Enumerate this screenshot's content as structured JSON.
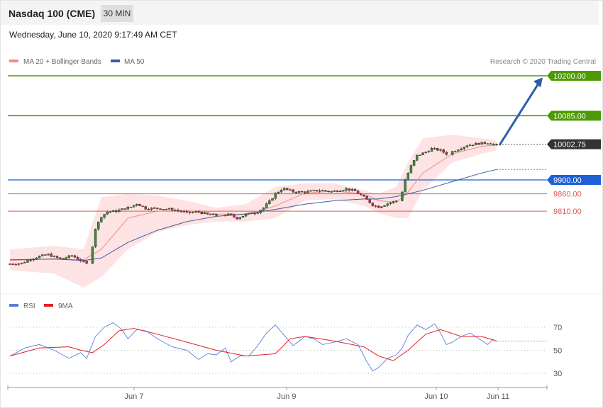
{
  "header": {
    "title": "Nasdaq 100 (CME)",
    "timeframe": "30 MIN"
  },
  "subheader": {
    "datetime": "Wednesday, June 10, 2020 9:17:49 AM CET"
  },
  "legend": {
    "ma20": "MA 20 + Bollinger Bands",
    "ma50": "MA 50",
    "rsi": "RSI",
    "ma9": "9MA"
  },
  "credit": "Research © 2020 Trading Central",
  "colors": {
    "resistance": "#4e9a06",
    "pivot": "#1f5fd6",
    "support": "#e05a5a",
    "current": "#333333",
    "arrow": "#2b5ea8",
    "ma20": "#f28b8b",
    "ma50": "#3a5ba0",
    "bollinger": "#fde0e0",
    "rsi": "#5b7fd6",
    "ma9": "#e02020",
    "candle_up": "#3a8a3a",
    "candle_down": "#c03030"
  },
  "chart_data": [
    {
      "type": "candlestick",
      "title": "Nasdaq 100 (CME)",
      "interval": "30 MIN",
      "x_ticks": [
        "Jun 7",
        "Jun 9",
        "Jun 10",
        "Jun 11"
      ],
      "ylim": [
        9600,
        10250
      ],
      "levels": [
        {
          "label": "10200.00",
          "value": 10200,
          "kind": "resistance"
        },
        {
          "label": "10085.00",
          "value": 10085,
          "kind": "resistance"
        },
        {
          "label": "10002.75",
          "value": 10002.75,
          "kind": "current"
        },
        {
          "label": "9900.00",
          "value": 9900,
          "kind": "pivot"
        },
        {
          "label": "9860.00",
          "value": 9860,
          "kind": "support"
        },
        {
          "label": "9810.00",
          "value": 9810,
          "kind": "support"
        }
      ],
      "target_arrow": {
        "from": 10000,
        "to": 10195
      },
      "price_path": [
        [
          0,
          9658
        ],
        [
          8,
          9660
        ],
        [
          14,
          9672
        ],
        [
          20,
          9680
        ],
        [
          26,
          9685
        ],
        [
          30,
          9678
        ],
        [
          35,
          9672
        ],
        [
          42,
          9682
        ],
        [
          48,
          9668
        ],
        [
          52,
          9658
        ],
        [
          55,
          9685
        ],
        [
          58,
          9760
        ],
        [
          62,
          9795
        ],
        [
          66,
          9808
        ],
        [
          72,
          9810
        ],
        [
          78,
          9818
        ],
        [
          82,
          9822
        ],
        [
          86,
          9832
        ],
        [
          92,
          9818
        ],
        [
          100,
          9818
        ],
        [
          110,
          9815
        ],
        [
          120,
          9805
        ],
        [
          128,
          9808
        ],
        [
          134,
          9800
        ],
        [
          140,
          9798
        ],
        [
          148,
          9800
        ],
        [
          154,
          9790
        ],
        [
          160,
          9800
        ],
        [
          168,
          9808
        ],
        [
          172,
          9820
        ],
        [
          176,
          9838
        ],
        [
          180,
          9860
        ],
        [
          185,
          9876
        ],
        [
          192,
          9866
        ],
        [
          200,
          9865
        ],
        [
          210,
          9870
        ],
        [
          218,
          9866
        ],
        [
          228,
          9874
        ],
        [
          234,
          9868
        ],
        [
          240,
          9850
        ],
        [
          246,
          9828
        ],
        [
          250,
          9822
        ],
        [
          256,
          9832
        ],
        [
          262,
          9840
        ],
        [
          265,
          9850
        ],
        [
          268,
          9900
        ],
        [
          272,
          9940
        ],
        [
          276,
          9970
        ],
        [
          282,
          9980
        ],
        [
          286,
          9990
        ],
        [
          292,
          9985
        ],
        [
          296,
          9975
        ],
        [
          302,
          9985
        ],
        [
          310,
          10000
        ],
        [
          318,
          10005
        ],
        [
          324,
          10007
        ],
        [
          328,
          10003
        ],
        [
          330,
          10000
        ]
      ],
      "bollinger": [
        [
          0,
          9640,
          9700
        ],
        [
          30,
          9630,
          9710
        ],
        [
          50,
          9590,
          9700
        ],
        [
          62,
          9620,
          9850
        ],
        [
          80,
          9700,
          9860
        ],
        [
          100,
          9750,
          9855
        ],
        [
          120,
          9770,
          9840
        ],
        [
          140,
          9780,
          9820
        ],
        [
          160,
          9780,
          9830
        ],
        [
          180,
          9790,
          9880
        ],
        [
          200,
          9840,
          9890
        ],
        [
          220,
          9845,
          9890
        ],
        [
          240,
          9825,
          9870
        ],
        [
          250,
          9805,
          9860
        ],
        [
          262,
          9790,
          9880
        ],
        [
          270,
          9790,
          9950
        ],
        [
          280,
          9870,
          10020
        ],
        [
          300,
          9950,
          10030
        ],
        [
          320,
          9975,
          10020
        ],
        [
          330,
          9985,
          10015
        ]
      ],
      "ma20": [
        [
          0,
          9668
        ],
        [
          30,
          9673
        ],
        [
          50,
          9670
        ],
        [
          62,
          9700
        ],
        [
          80,
          9790
        ],
        [
          100,
          9810
        ],
        [
          120,
          9812
        ],
        [
          140,
          9802
        ],
        [
          160,
          9800
        ],
        [
          180,
          9825
        ],
        [
          200,
          9862
        ],
        [
          220,
          9868
        ],
        [
          240,
          9860
        ],
        [
          250,
          9840
        ],
        [
          262,
          9835
        ],
        [
          270,
          9865
        ],
        [
          280,
          9920
        ],
        [
          300,
          9975
        ],
        [
          320,
          9997
        ],
        [
          330,
          10000
        ]
      ],
      "ma50": [
        [
          0,
          9670
        ],
        [
          30,
          9672
        ],
        [
          50,
          9668
        ],
        [
          62,
          9675
        ],
        [
          80,
          9720
        ],
        [
          100,
          9755
        ],
        [
          120,
          9780
        ],
        [
          140,
          9795
        ],
        [
          160,
          9802
        ],
        [
          180,
          9815
        ],
        [
          200,
          9830
        ],
        [
          220,
          9840
        ],
        [
          240,
          9845
        ],
        [
          250,
          9845
        ],
        [
          262,
          9852
        ],
        [
          280,
          9870
        ],
        [
          300,
          9895
        ],
        [
          320,
          9920
        ],
        [
          330,
          9930
        ]
      ]
    },
    {
      "type": "line",
      "title": "RSI",
      "ylim": [
        20,
        80
      ],
      "y_ticks": [
        70,
        50,
        30
      ],
      "series": [
        {
          "name": "RSI",
          "values": [
            [
              0,
              45
            ],
            [
              10,
              52
            ],
            [
              20,
              55
            ],
            [
              30,
              50
            ],
            [
              40,
              43
            ],
            [
              48,
              48
            ],
            [
              52,
              43
            ],
            [
              58,
              62
            ],
            [
              64,
              70
            ],
            [
              70,
              74
            ],
            [
              76,
              68
            ],
            [
              80,
              60
            ],
            [
              86,
              68
            ],
            [
              92,
              67
            ],
            [
              100,
              60
            ],
            [
              110,
              53
            ],
            [
              120,
              50
            ],
            [
              128,
              42
            ],
            [
              134,
              47
            ],
            [
              140,
              46
            ],
            [
              146,
              52
            ],
            [
              150,
              40
            ],
            [
              156,
              45
            ],
            [
              162,
              45
            ],
            [
              168,
              54
            ],
            [
              174,
              65
            ],
            [
              180,
              72
            ],
            [
              186,
              63
            ],
            [
              192,
              54
            ],
            [
              200,
              62
            ],
            [
              206,
              60
            ],
            [
              212,
              55
            ],
            [
              220,
              57
            ],
            [
              228,
              60
            ],
            [
              236,
              55
            ],
            [
              242,
              40
            ],
            [
              246,
              32
            ],
            [
              250,
              35
            ],
            [
              256,
              43
            ],
            [
              262,
              46
            ],
            [
              266,
              52
            ],
            [
              270,
              63
            ],
            [
              276,
              72
            ],
            [
              282,
              68
            ],
            [
              288,
              73
            ],
            [
              292,
              65
            ],
            [
              296,
              55
            ],
            [
              300,
              57
            ],
            [
              306,
              62
            ],
            [
              312,
              65
            ],
            [
              318,
              60
            ],
            [
              324,
              55
            ],
            [
              328,
              60
            ]
          ]
        },
        {
          "name": "9MA",
          "values": [
            [
              0,
              45
            ],
            [
              20,
              52
            ],
            [
              40,
              53
            ],
            [
              48,
              50
            ],
            [
              56,
              48
            ],
            [
              64,
              55
            ],
            [
              74,
              67
            ],
            [
              84,
              69
            ],
            [
              100,
              64
            ],
            [
              120,
              57
            ],
            [
              140,
              50
            ],
            [
              160,
              45
            ],
            [
              180,
              47
            ],
            [
              190,
              60
            ],
            [
              200,
              62
            ],
            [
              220,
              58
            ],
            [
              240,
              53
            ],
            [
              250,
              45
            ],
            [
              260,
              41
            ],
            [
              270,
              50
            ],
            [
              282,
              64
            ],
            [
              292,
              68
            ],
            [
              306,
              62
            ],
            [
              320,
              62
            ],
            [
              330,
              58
            ]
          ]
        }
      ]
    }
  ]
}
